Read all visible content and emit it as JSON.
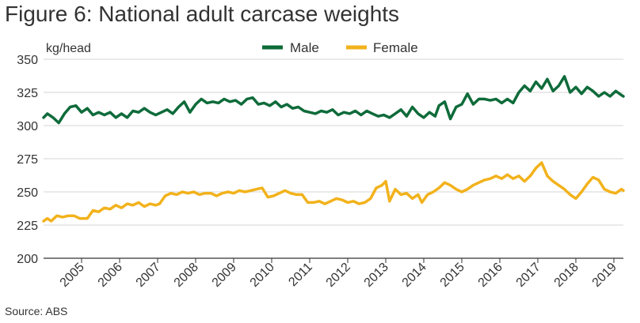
{
  "figure": {
    "title": "Figure 6: National adult carcase weights",
    "source": "Source: ABS"
  },
  "chart_data": {
    "type": "line",
    "title": "Figure 6: National adult carcase weights",
    "ylabel": "kg/head",
    "xlabel": "",
    "ylim": [
      200,
      350
    ],
    "yticks": [
      200,
      225,
      250,
      275,
      300,
      325,
      350
    ],
    "xlim": [
      2004.0,
      2019.25
    ],
    "xticks": [
      2005,
      2006,
      2007,
      2008,
      2009,
      2010,
      2011,
      2012,
      2013,
      2014,
      2015,
      2016,
      2017,
      2018,
      2019
    ],
    "x_tick_labels": [
      "2005",
      "2006",
      "2007",
      "2008",
      "2009",
      "2010",
      "2011",
      "2012",
      "2013",
      "2014",
      "2015",
      "2016",
      "2017",
      "2018",
      "2019"
    ],
    "grid": "horizontal",
    "legend_position": "top-center",
    "colors": {
      "male": "#0e6b3a",
      "female": "#f2b21c",
      "grid": "#d6d6d6",
      "axis": "#333333"
    },
    "series": [
      {
        "name": "Male",
        "color": "#0e6b3a",
        "points": [
          [
            2004.0,
            306
          ],
          [
            2004.1,
            309
          ],
          [
            2004.25,
            306
          ],
          [
            2004.4,
            302
          ],
          [
            2004.55,
            309
          ],
          [
            2004.7,
            314
          ],
          [
            2004.85,
            315
          ],
          [
            2005.0,
            310
          ],
          [
            2005.15,
            313
          ],
          [
            2005.3,
            308
          ],
          [
            2005.45,
            310
          ],
          [
            2005.6,
            308
          ],
          [
            2005.75,
            310
          ],
          [
            2005.9,
            306
          ],
          [
            2006.05,
            309
          ],
          [
            2006.2,
            306
          ],
          [
            2006.35,
            311
          ],
          [
            2006.5,
            310
          ],
          [
            2006.65,
            313
          ],
          [
            2006.8,
            310
          ],
          [
            2006.95,
            308
          ],
          [
            2007.1,
            310
          ],
          [
            2007.25,
            312
          ],
          [
            2007.4,
            309
          ],
          [
            2007.55,
            314
          ],
          [
            2007.7,
            318
          ],
          [
            2007.85,
            310
          ],
          [
            2008.0,
            316
          ],
          [
            2008.15,
            320
          ],
          [
            2008.3,
            317
          ],
          [
            2008.45,
            318
          ],
          [
            2008.6,
            317
          ],
          [
            2008.75,
            320
          ],
          [
            2008.9,
            318
          ],
          [
            2009.05,
            319
          ],
          [
            2009.2,
            316
          ],
          [
            2009.35,
            320
          ],
          [
            2009.5,
            321
          ],
          [
            2009.65,
            316
          ],
          [
            2009.8,
            317
          ],
          [
            2009.95,
            315
          ],
          [
            2010.1,
            318
          ],
          [
            2010.25,
            314
          ],
          [
            2010.4,
            316
          ],
          [
            2010.55,
            313
          ],
          [
            2010.7,
            314
          ],
          [
            2010.85,
            311
          ],
          [
            2011.0,
            310
          ],
          [
            2011.15,
            309
          ],
          [
            2011.3,
            311
          ],
          [
            2011.45,
            310
          ],
          [
            2011.6,
            312
          ],
          [
            2011.75,
            308
          ],
          [
            2011.9,
            310
          ],
          [
            2012.05,
            309
          ],
          [
            2012.2,
            311
          ],
          [
            2012.35,
            308
          ],
          [
            2012.5,
            311
          ],
          [
            2012.65,
            309
          ],
          [
            2012.8,
            307
          ],
          [
            2012.95,
            308
          ],
          [
            2013.1,
            306
          ],
          [
            2013.25,
            309
          ],
          [
            2013.4,
            312
          ],
          [
            2013.55,
            307
          ],
          [
            2013.7,
            314
          ],
          [
            2013.85,
            309
          ],
          [
            2014.0,
            306
          ],
          [
            2014.15,
            310
          ],
          [
            2014.3,
            307
          ],
          [
            2014.4,
            315
          ],
          [
            2014.55,
            318
          ],
          [
            2014.7,
            305
          ],
          [
            2014.85,
            314
          ],
          [
            2015.0,
            316
          ],
          [
            2015.15,
            324
          ],
          [
            2015.3,
            316
          ],
          [
            2015.45,
            320
          ],
          [
            2015.6,
            320
          ],
          [
            2015.75,
            319
          ],
          [
            2015.9,
            320
          ],
          [
            2016.05,
            317
          ],
          [
            2016.2,
            320
          ],
          [
            2016.35,
            317
          ],
          [
            2016.5,
            325
          ],
          [
            2016.65,
            330
          ],
          [
            2016.8,
            326
          ],
          [
            2016.95,
            333
          ],
          [
            2017.1,
            328
          ],
          [
            2017.25,
            335
          ],
          [
            2017.4,
            326
          ],
          [
            2017.55,
            330
          ],
          [
            2017.7,
            337
          ],
          [
            2017.85,
            325
          ],
          [
            2018.0,
            329
          ],
          [
            2018.15,
            324
          ],
          [
            2018.3,
            329
          ],
          [
            2018.45,
            326
          ],
          [
            2018.6,
            322
          ],
          [
            2018.75,
            325
          ],
          [
            2018.9,
            322
          ],
          [
            2019.05,
            326
          ],
          [
            2019.2,
            323
          ],
          [
            2019.25,
            322
          ]
        ]
      },
      {
        "name": "Female",
        "color": "#f2b21c",
        "points": [
          [
            2004.0,
            228
          ],
          [
            2004.1,
            230
          ],
          [
            2004.2,
            228
          ],
          [
            2004.35,
            232
          ],
          [
            2004.5,
            231
          ],
          [
            2004.65,
            232
          ],
          [
            2004.8,
            232
          ],
          [
            2004.95,
            230
          ],
          [
            2005.15,
            230
          ],
          [
            2005.3,
            236
          ],
          [
            2005.45,
            235
          ],
          [
            2005.6,
            238
          ],
          [
            2005.75,
            237
          ],
          [
            2005.9,
            240
          ],
          [
            2006.05,
            238
          ],
          [
            2006.2,
            241
          ],
          [
            2006.35,
            240
          ],
          [
            2006.5,
            242
          ],
          [
            2006.65,
            239
          ],
          [
            2006.8,
            241
          ],
          [
            2006.95,
            240
          ],
          [
            2007.05,
            241
          ],
          [
            2007.2,
            247
          ],
          [
            2007.35,
            249
          ],
          [
            2007.5,
            248
          ],
          [
            2007.65,
            250
          ],
          [
            2007.8,
            249
          ],
          [
            2007.95,
            250
          ],
          [
            2008.1,
            248
          ],
          [
            2008.25,
            249
          ],
          [
            2008.4,
            249
          ],
          [
            2008.55,
            247
          ],
          [
            2008.7,
            249
          ],
          [
            2008.85,
            250
          ],
          [
            2009.0,
            249
          ],
          [
            2009.15,
            251
          ],
          [
            2009.3,
            250
          ],
          [
            2009.45,
            251
          ],
          [
            2009.6,
            252
          ],
          [
            2009.75,
            253
          ],
          [
            2009.9,
            246
          ],
          [
            2010.05,
            247
          ],
          [
            2010.2,
            249
          ],
          [
            2010.35,
            251
          ],
          [
            2010.5,
            249
          ],
          [
            2010.65,
            248
          ],
          [
            2010.8,
            248
          ],
          [
            2010.95,
            242
          ],
          [
            2011.1,
            242
          ],
          [
            2011.25,
            243
          ],
          [
            2011.4,
            241
          ],
          [
            2011.55,
            243
          ],
          [
            2011.7,
            245
          ],
          [
            2011.85,
            244
          ],
          [
            2012.0,
            242
          ],
          [
            2012.15,
            243
          ],
          [
            2012.3,
            241
          ],
          [
            2012.45,
            242
          ],
          [
            2012.6,
            245
          ],
          [
            2012.75,
            253
          ],
          [
            2012.9,
            255
          ],
          [
            2013.0,
            258
          ],
          [
            2013.1,
            243
          ],
          [
            2013.25,
            252
          ],
          [
            2013.4,
            248
          ],
          [
            2013.55,
            249
          ],
          [
            2013.7,
            245
          ],
          [
            2013.85,
            248
          ],
          [
            2013.95,
            242
          ],
          [
            2014.1,
            248
          ],
          [
            2014.25,
            250
          ],
          [
            2014.4,
            253
          ],
          [
            2014.55,
            257
          ],
          [
            2014.7,
            255
          ],
          [
            2014.85,
            252
          ],
          [
            2015.0,
            250
          ],
          [
            2015.15,
            252
          ],
          [
            2015.3,
            255
          ],
          [
            2015.45,
            257
          ],
          [
            2015.6,
            259
          ],
          [
            2015.75,
            260
          ],
          [
            2015.9,
            262
          ],
          [
            2016.05,
            260
          ],
          [
            2016.2,
            263
          ],
          [
            2016.35,
            260
          ],
          [
            2016.5,
            262
          ],
          [
            2016.65,
            258
          ],
          [
            2016.8,
            262
          ],
          [
            2016.95,
            268
          ],
          [
            2017.1,
            272
          ],
          [
            2017.25,
            262
          ],
          [
            2017.4,
            258
          ],
          [
            2017.55,
            255
          ],
          [
            2017.7,
            252
          ],
          [
            2017.85,
            248
          ],
          [
            2018.0,
            245
          ],
          [
            2018.15,
            250
          ],
          [
            2018.3,
            256
          ],
          [
            2018.45,
            261
          ],
          [
            2018.6,
            259
          ],
          [
            2018.75,
            252
          ],
          [
            2018.9,
            250
          ],
          [
            2019.05,
            249
          ],
          [
            2019.2,
            252
          ],
          [
            2019.25,
            251
          ]
        ]
      }
    ]
  }
}
